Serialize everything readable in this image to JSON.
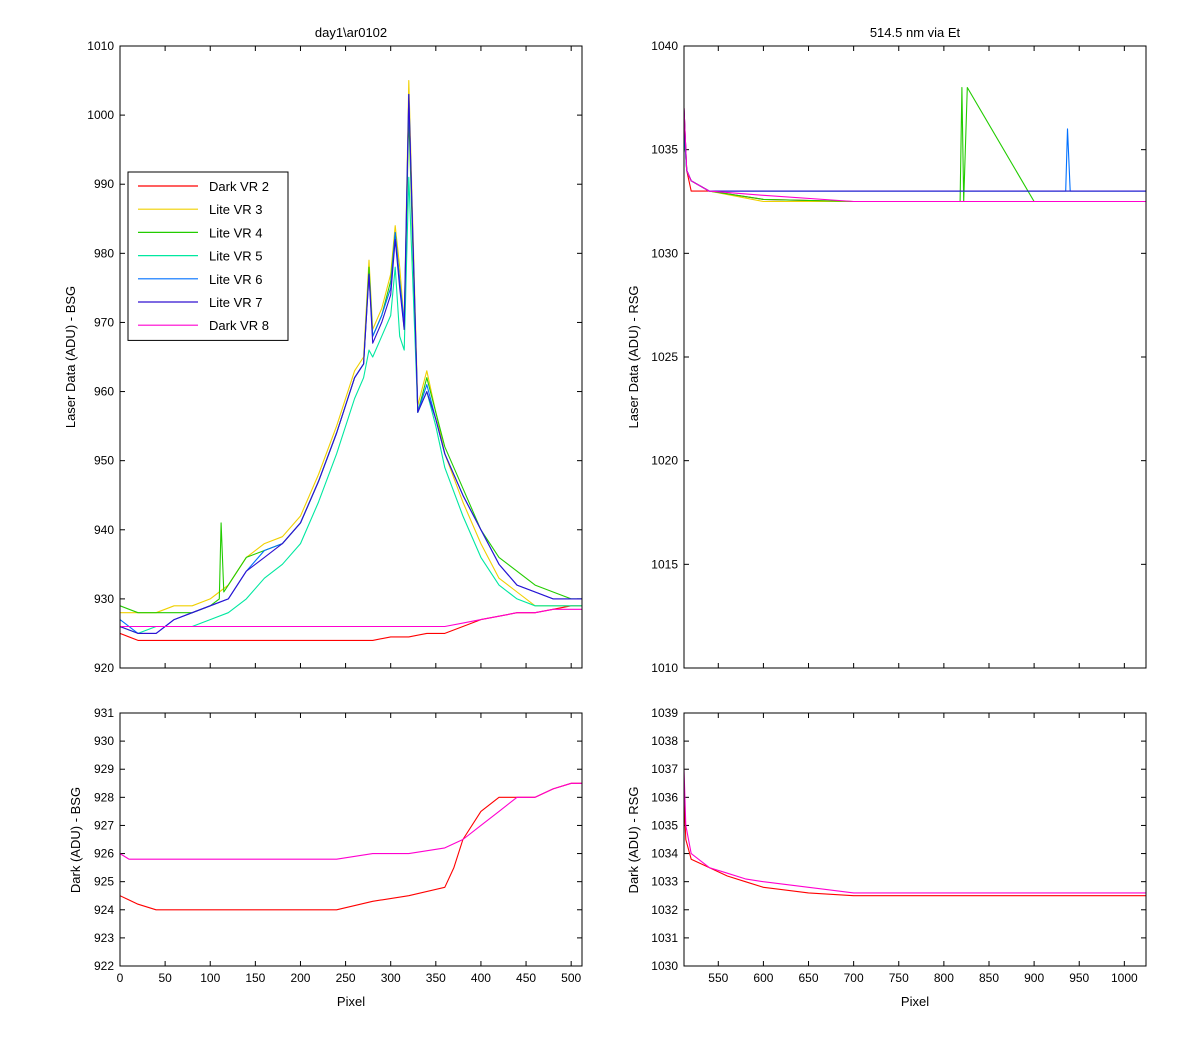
{
  "chart_data": [
    {
      "type": "line",
      "title": "day1\\ar0102",
      "xlabel": "",
      "ylabel": "Laser Data (ADU) - BSG",
      "xlim": [
        0,
        512
      ],
      "ylim": [
        920,
        1010
      ],
      "xticks": [
        0,
        50,
        100,
        150,
        200,
        250,
        300,
        350,
        400,
        450,
        500
      ],
      "yticks": [
        920,
        930,
        940,
        950,
        960,
        970,
        980,
        990,
        1000,
        1010
      ],
      "show_xtick_labels": false,
      "legend": "upper-left",
      "series": [
        {
          "name": "Dark VR 2",
          "color": "#ff0000",
          "x": [
            0,
            20,
            40,
            80,
            120,
            160,
            200,
            240,
            280,
            300,
            320,
            340,
            360,
            380,
            400,
            420,
            440,
            460,
            480,
            500,
            512
          ],
          "y": [
            925,
            924,
            924,
            924,
            924,
            924,
            924,
            924,
            924,
            924.5,
            924.5,
            925,
            925,
            926,
            927,
            927.5,
            928,
            928,
            928.5,
            929,
            929
          ]
        },
        {
          "name": "Lite VR 3",
          "color": "#f0d000",
          "x": [
            0,
            20,
            40,
            60,
            80,
            100,
            110,
            120,
            140,
            160,
            180,
            200,
            220,
            240,
            260,
            270,
            276,
            280,
            290,
            300,
            305,
            310,
            315,
            320,
            330,
            340,
            350,
            360,
            380,
            400,
            420,
            440,
            460,
            480,
            500,
            512
          ],
          "y": [
            928,
            928,
            928,
            929,
            929,
            930,
            931,
            932,
            936,
            938,
            939,
            942,
            948,
            955,
            963,
            965,
            979,
            969,
            972,
            977,
            984,
            978,
            970,
            1005,
            958,
            963,
            957,
            951,
            944,
            938,
            933,
            931,
            929,
            929,
            929,
            929
          ]
        },
        {
          "name": "Lite VR 4",
          "color": "#22cc00",
          "x": [
            0,
            20,
            40,
            60,
            80,
            100,
            110,
            112,
            115,
            120,
            140,
            160,
            180,
            200,
            220,
            240,
            260,
            270,
            276,
            280,
            290,
            300,
            305,
            310,
            315,
            320,
            330,
            340,
            350,
            360,
            380,
            400,
            420,
            440,
            460,
            480,
            500,
            512
          ],
          "y": [
            929,
            928,
            928,
            928,
            928,
            929,
            930,
            941,
            931,
            932,
            936,
            937,
            938,
            941,
            947,
            954,
            962,
            964,
            978,
            968,
            971,
            976,
            983,
            976,
            969,
            1000,
            957,
            962,
            957,
            952,
            946,
            940,
            936,
            934,
            932,
            931,
            930,
            930
          ]
        },
        {
          "name": "Lite VR 5",
          "color": "#00e8a0",
          "x": [
            0,
            20,
            40,
            60,
            80,
            100,
            120,
            140,
            160,
            180,
            200,
            220,
            240,
            260,
            270,
            276,
            280,
            290,
            300,
            305,
            310,
            315,
            320,
            330,
            340,
            350,
            360,
            380,
            400,
            420,
            440,
            460,
            480,
            500,
            512
          ],
          "y": [
            926,
            925,
            926,
            926,
            926,
            927,
            928,
            930,
            933,
            935,
            938,
            944,
            951,
            959,
            962,
            966,
            965,
            968,
            971,
            978,
            968,
            966,
            991,
            957,
            960,
            955,
            949,
            942,
            936,
            932,
            930,
            929,
            929,
            929,
            929
          ]
        },
        {
          "name": "Lite VR 6",
          "color": "#0070ff",
          "x": [
            0,
            20,
            40,
            60,
            80,
            100,
            120,
            140,
            160,
            180,
            200,
            220,
            240,
            260,
            270,
            276,
            280,
            290,
            300,
            305,
            310,
            315,
            320,
            330,
            340,
            350,
            360,
            380,
            400,
            420,
            440,
            460,
            480,
            500,
            512
          ],
          "y": [
            927,
            925,
            925,
            927,
            928,
            929,
            930,
            934,
            937,
            938,
            941,
            947,
            954,
            962,
            964,
            977,
            968,
            971,
            975,
            983,
            976,
            970,
            1003,
            957,
            961,
            956,
            951,
            945,
            940,
            935,
            932,
            931,
            930,
            930,
            930
          ]
        },
        {
          "name": "Lite VR 7",
          "color": "#3010d0",
          "x": [
            0,
            20,
            40,
            60,
            80,
            100,
            120,
            140,
            160,
            180,
            200,
            220,
            240,
            260,
            270,
            276,
            280,
            290,
            300,
            305,
            310,
            315,
            320,
            330,
            340,
            350,
            360,
            380,
            400,
            420,
            440,
            460,
            480,
            500,
            512
          ],
          "y": [
            926,
            925,
            925,
            927,
            928,
            929,
            930,
            934,
            936,
            938,
            941,
            947,
            954,
            962,
            964,
            977,
            967,
            970,
            974,
            982,
            975,
            969,
            1003,
            957,
            960,
            956,
            951,
            945,
            940,
            935,
            932,
            931,
            930,
            930,
            930
          ]
        },
        {
          "name": "Dark VR 8",
          "color": "#ff00d0",
          "x": [
            0,
            40,
            80,
            120,
            160,
            200,
            240,
            280,
            320,
            360,
            380,
            400,
            420,
            440,
            460,
            480,
            500,
            512
          ],
          "y": [
            926,
            926,
            926,
            926,
            926,
            926,
            926,
            926,
            926,
            926,
            926.5,
            927,
            927.5,
            928,
            928,
            928.5,
            928.5,
            928.5
          ]
        }
      ]
    },
    {
      "type": "line",
      "title": "514.5 nm via Et",
      "xlabel": "",
      "ylabel": "Laser Data (ADU) - RSG",
      "xlim": [
        512,
        1024
      ],
      "ylim": [
        1010,
        1040
      ],
      "xticks": [
        550,
        600,
        650,
        700,
        750,
        800,
        850,
        900,
        950,
        1000
      ],
      "yticks": [
        1010,
        1015,
        1020,
        1025,
        1030,
        1035,
        1040
      ],
      "show_xtick_labels": false,
      "series": [
        {
          "name": "Dark VR 2",
          "color": "#ff0000",
          "x": [
            512,
            515,
            520,
            540,
            600,
            700,
            800,
            900,
            1024
          ],
          "y": [
            1037,
            1034,
            1033,
            1033,
            1032.6,
            1032.5,
            1032.5,
            1032.5,
            1032.5
          ]
        },
        {
          "name": "Lite VR 3",
          "color": "#f0d000",
          "x": [
            512,
            515,
            520,
            540,
            600,
            700,
            800,
            900,
            1024
          ],
          "y": [
            1036,
            1034,
            1033.5,
            1033,
            1032.5,
            1032.5,
            1032.5,
            1032.5,
            1032.5
          ]
        },
        {
          "name": "Lite VR 4",
          "color": "#22cc00",
          "x": [
            512,
            515,
            520,
            540,
            600,
            700,
            800,
            818,
            820,
            822,
            826,
            900,
            1024
          ],
          "y": [
            1036,
            1034,
            1033.5,
            1033,
            1032.6,
            1032.5,
            1032.5,
            1032.5,
            1038,
            1032.5,
            1038,
            1032.5,
            1032.5
          ]
        },
        {
          "name": "Lite VR 5",
          "color": "#00e8a0",
          "x": [
            512,
            515,
            520,
            540,
            600,
            700,
            800,
            900,
            1024
          ],
          "y": [
            1036,
            1034,
            1033.5,
            1033,
            1033,
            1033,
            1033,
            1033,
            1033
          ]
        },
        {
          "name": "Lite VR 6",
          "color": "#0070ff",
          "x": [
            512,
            515,
            520,
            540,
            600,
            700,
            800,
            900,
            935,
            937,
            940,
            1024
          ],
          "y": [
            1036,
            1034,
            1033.5,
            1033,
            1033,
            1033,
            1033,
            1033,
            1033,
            1036,
            1033,
            1033
          ]
        },
        {
          "name": "Lite VR 7",
          "color": "#3010d0",
          "x": [
            512,
            515,
            520,
            540,
            600,
            700,
            800,
            900,
            1024
          ],
          "y": [
            1037,
            1034,
            1033.5,
            1033,
            1033,
            1033,
            1033,
            1033,
            1033
          ]
        },
        {
          "name": "Dark VR 8",
          "color": "#ff00d0",
          "x": [
            512,
            515,
            520,
            540,
            600,
            700,
            800,
            900,
            1024
          ],
          "y": [
            1037,
            1034,
            1033.5,
            1033,
            1032.8,
            1032.5,
            1032.5,
            1032.5,
            1032.5
          ]
        }
      ]
    },
    {
      "type": "line",
      "title": "",
      "xlabel": "Pixel",
      "ylabel": "Dark (ADU) - BSG",
      "xlim": [
        0,
        512
      ],
      "ylim": [
        922,
        931
      ],
      "xticks": [
        0,
        50,
        100,
        150,
        200,
        250,
        300,
        350,
        400,
        450,
        500
      ],
      "yticks": [
        922,
        923,
        924,
        925,
        926,
        927,
        928,
        929,
        930,
        931
      ],
      "show_xtick_labels": true,
      "series": [
        {
          "name": "Dark VR 2",
          "color": "#ff0000",
          "x": [
            0,
            20,
            40,
            80,
            120,
            160,
            200,
            240,
            280,
            320,
            360,
            370,
            380,
            400,
            420,
            440,
            460,
            480,
            500,
            512
          ],
          "y": [
            924.5,
            924.2,
            924,
            924,
            924,
            924,
            924,
            924,
            924.3,
            924.5,
            924.8,
            925.5,
            926.5,
            927.5,
            928,
            928,
            928,
            928.3,
            928.5,
            928.5
          ]
        },
        {
          "name": "Dark VR 8",
          "color": "#ff00d0",
          "x": [
            0,
            10,
            40,
            80,
            120,
            160,
            200,
            240,
            280,
            320,
            360,
            380,
            400,
            420,
            440,
            460,
            480,
            500,
            512
          ],
          "y": [
            926,
            925.8,
            925.8,
            925.8,
            925.8,
            925.8,
            925.8,
            925.8,
            926,
            926,
            926.2,
            926.5,
            927,
            927.5,
            928,
            928,
            928.3,
            928.5,
            928.5
          ]
        }
      ]
    },
    {
      "type": "line",
      "title": "",
      "xlabel": "Pixel",
      "ylabel": "Dark (ADU) - RSG",
      "xlim": [
        512,
        1024
      ],
      "ylim": [
        1030,
        1039
      ],
      "xticks": [
        550,
        600,
        650,
        700,
        750,
        800,
        850,
        900,
        950,
        1000
      ],
      "yticks": [
        1030,
        1031,
        1032,
        1033,
        1034,
        1035,
        1036,
        1037,
        1038,
        1039
      ],
      "show_xtick_labels": true,
      "series": [
        {
          "name": "Dark VR 2",
          "color": "#ff0000",
          "x": [
            512,
            514,
            520,
            540,
            560,
            580,
            600,
            650,
            700,
            750,
            800,
            850,
            900,
            950,
            1000,
            1024
          ],
          "y": [
            1036,
            1034.5,
            1033.8,
            1033.5,
            1033.2,
            1033,
            1032.8,
            1032.6,
            1032.5,
            1032.5,
            1032.5,
            1032.5,
            1032.5,
            1032.5,
            1032.5,
            1032.5
          ]
        },
        {
          "name": "Dark VR 8",
          "color": "#ff00d0",
          "x": [
            512,
            514,
            520,
            540,
            560,
            580,
            600,
            650,
            700,
            750,
            800,
            850,
            900,
            950,
            1000,
            1024
          ],
          "y": [
            1037,
            1035,
            1034,
            1033.5,
            1033.3,
            1033.1,
            1033,
            1032.8,
            1032.6,
            1032.6,
            1032.6,
            1032.6,
            1032.6,
            1032.6,
            1032.6,
            1032.6
          ]
        }
      ]
    }
  ]
}
